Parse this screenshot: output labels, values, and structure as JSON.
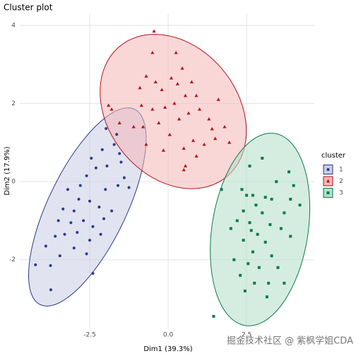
{
  "chart_data": {
    "type": "scatter",
    "title": "Cluster plot",
    "x_label": "Dim1 (39.3%)",
    "y_label": "Dim2 (17.9%)",
    "legend_title": "cluster",
    "legend_position": "right",
    "grid": true,
    "ellipse": true,
    "xlim": [
      -4.73,
      4.66
    ],
    "ylim": [
      -3.76,
      4.29
    ],
    "xticks": [
      -2.5,
      {
        "value": 0,
        "label": "0.0"
      },
      2.5
    ],
    "yticks": [
      -2,
      0,
      2,
      4
    ],
    "series": [
      {
        "name": "1",
        "color": "#2b3a8c",
        "fill": "#c9cce5",
        "shape": "circle",
        "x": [
          -4.23,
          -3.74,
          -1.98,
          -1.64,
          -1.72,
          -1.55,
          -2.1,
          -2.45,
          -2.3,
          -1.95,
          -1.4,
          -1.25,
          -1.6,
          -2.0,
          -2.6,
          -3.2,
          -2.85,
          -2.5,
          -2.2,
          -1.8,
          -3.0,
          -3.35,
          -3.5,
          -3.1,
          -2.7,
          -2.4,
          -2.9,
          -3.3,
          -3.6,
          -2.5,
          -2.15,
          -3.0,
          -2.6,
          -3.45,
          -3.75,
          -2.4,
          -2.8,
          -2.05,
          -1.5,
          -3.9
        ],
        "y": [
          -2.13,
          -2.77,
          1.36,
          1.21,
          0.95,
          0.72,
          0.82,
          0.6,
          0.35,
          0.4,
          0.1,
          -0.15,
          -0.1,
          -0.2,
          0.15,
          -0.2,
          -0.45,
          -0.5,
          -0.65,
          -0.75,
          -0.75,
          -0.7,
          -1.0,
          -1.05,
          -1.0,
          -1.15,
          -1.3,
          -1.35,
          -1.4,
          -1.5,
          -1.35,
          -1.7,
          -1.85,
          -1.9,
          -2.15,
          -2.35,
          -0.1,
          -0.95,
          0.5,
          -1.65
        ]
      },
      {
        "name": "2",
        "color": "#b5121b",
        "fill": "#f5b7b7",
        "shape": "triangle",
        "x": [
          -0.5,
          -0.7,
          -0.9,
          -0.4,
          -0.2,
          0.1,
          0.3,
          0.45,
          0.75,
          0.55,
          0.9,
          0.2,
          -0.1,
          -0.5,
          -0.85,
          -1.8,
          -1.9,
          -0.8,
          -0.3,
          0.05,
          0.35,
          0.65,
          1.0,
          1.3,
          1.4,
          1.5,
          1.8,
          1.15,
          0.8,
          0.5,
          0.9,
          0.55,
          -0.15,
          -0.7,
          1.6,
          -1.55,
          -1.1,
          1.95,
          0.25,
          0.5,
          -0.45
        ],
        "y": [
          3.3,
          2.7,
          2.4,
          2.55,
          2.35,
          2.65,
          2.5,
          2.9,
          2.55,
          2.2,
          2.2,
          2.0,
          1.9,
          1.85,
          1.95,
          1.85,
          1.95,
          1.4,
          1.5,
          1.2,
          1.6,
          1.75,
          1.85,
          1.6,
          1.35,
          1.1,
          1.4,
          0.95,
          1.05,
          0.85,
          0.65,
          0.4,
          0.8,
          0.95,
          2.1,
          1.5,
          1.4,
          1.0,
          3.3,
          0.3,
          3.85
        ]
      },
      {
        "name": "3",
        "color": "#0a7a4a",
        "fill": "#b3dfc6",
        "shape": "square",
        "x": [
          3.0,
          2.6,
          3.45,
          2.35,
          2.5,
          2.7,
          3.1,
          3.3,
          1.7,
          2.8,
          2.4,
          3.0,
          3.7,
          4.2,
          3.9,
          2.2,
          2.6,
          3.25,
          3.6,
          2.0,
          2.85,
          2.4,
          3.1,
          3.9,
          2.7,
          3.3,
          2.1,
          2.55,
          2.9,
          3.5,
          2.3,
          2.75,
          3.2,
          3.7,
          1.45,
          4.0,
          3.85,
          2.65,
          3.15,
          2.45
        ],
        "y": [
          0.6,
          0.4,
          0.0,
          -0.2,
          -0.35,
          -0.35,
          -0.4,
          -0.45,
          -0.2,
          -0.6,
          -0.75,
          -0.8,
          -0.8,
          -0.6,
          -0.45,
          -1.0,
          -1.05,
          -1.1,
          -1.2,
          -1.2,
          -1.35,
          -1.5,
          -1.55,
          -1.4,
          -1.8,
          -1.9,
          -2.0,
          -2.1,
          -2.2,
          -2.2,
          -2.4,
          -2.6,
          -2.6,
          -2.6,
          -3.45,
          -0.1,
          0.25,
          -1.25,
          -2.95,
          -2.8
        ]
      }
    ],
    "watermark": "掘金技术社区 @ 紫枫学姐CDA"
  }
}
